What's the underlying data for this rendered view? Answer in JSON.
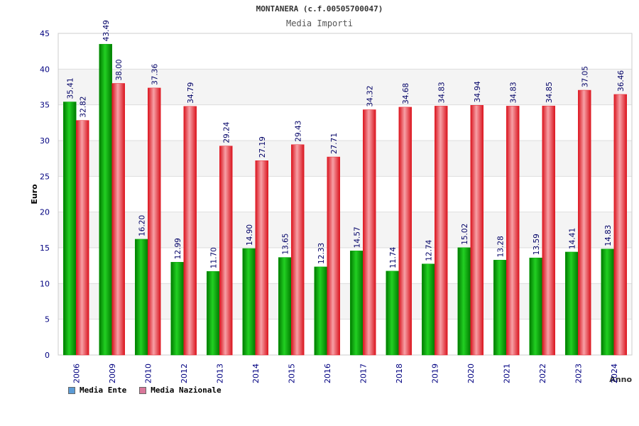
{
  "chart_data": {
    "type": "bar",
    "title": "MONTANERA (c.f.00505700047)",
    "subtitle": "Media Importi",
    "xlabel": "Anno",
    "ylabel": "Euro",
    "ylim": [
      0,
      45
    ],
    "yticks": [
      0,
      5,
      10,
      15,
      20,
      25,
      30,
      35,
      40,
      45
    ],
    "grid": true,
    "legend_position": "bottom-left",
    "categories": [
      "2006",
      "2009",
      "2010",
      "2012",
      "2013",
      "2014",
      "2015",
      "2016",
      "2017",
      "2018",
      "2019",
      "2020",
      "2021",
      "2022",
      "2023",
      "2024"
    ],
    "series": [
      {
        "name": "Media Ente",
        "color": "#00b000",
        "legend_color": "#5b9bd5",
        "values": [
          35.41,
          43.49,
          16.2,
          12.99,
          11.7,
          14.9,
          13.65,
          12.33,
          14.57,
          11.74,
          12.74,
          15.02,
          13.28,
          13.59,
          14.41,
          14.83
        ],
        "labels": [
          "35.41",
          "43.49",
          "16.20",
          "12.99",
          "11.70",
          "14.90",
          "13.65",
          "12.33",
          "14.57",
          "11.74",
          "12.74",
          "15.02",
          "13.28",
          "13.59",
          "14.41",
          "14.83"
        ]
      },
      {
        "name": "Media Nazionale",
        "color": "#e8202a",
        "legend_color": "#d9779a",
        "values": [
          32.82,
          38.0,
          37.36,
          34.79,
          29.24,
          27.19,
          29.43,
          27.71,
          34.32,
          34.68,
          34.83,
          34.94,
          34.83,
          34.85,
          37.05,
          36.46
        ],
        "labels": [
          "32.82",
          "38.00",
          "37.36",
          "34.79",
          "29.24",
          "27.19",
          "29.43",
          "27.71",
          "34.32",
          "34.68",
          "34.83",
          "34.94",
          "34.83",
          "34.85",
          "37.05",
          "36.46"
        ]
      }
    ]
  }
}
